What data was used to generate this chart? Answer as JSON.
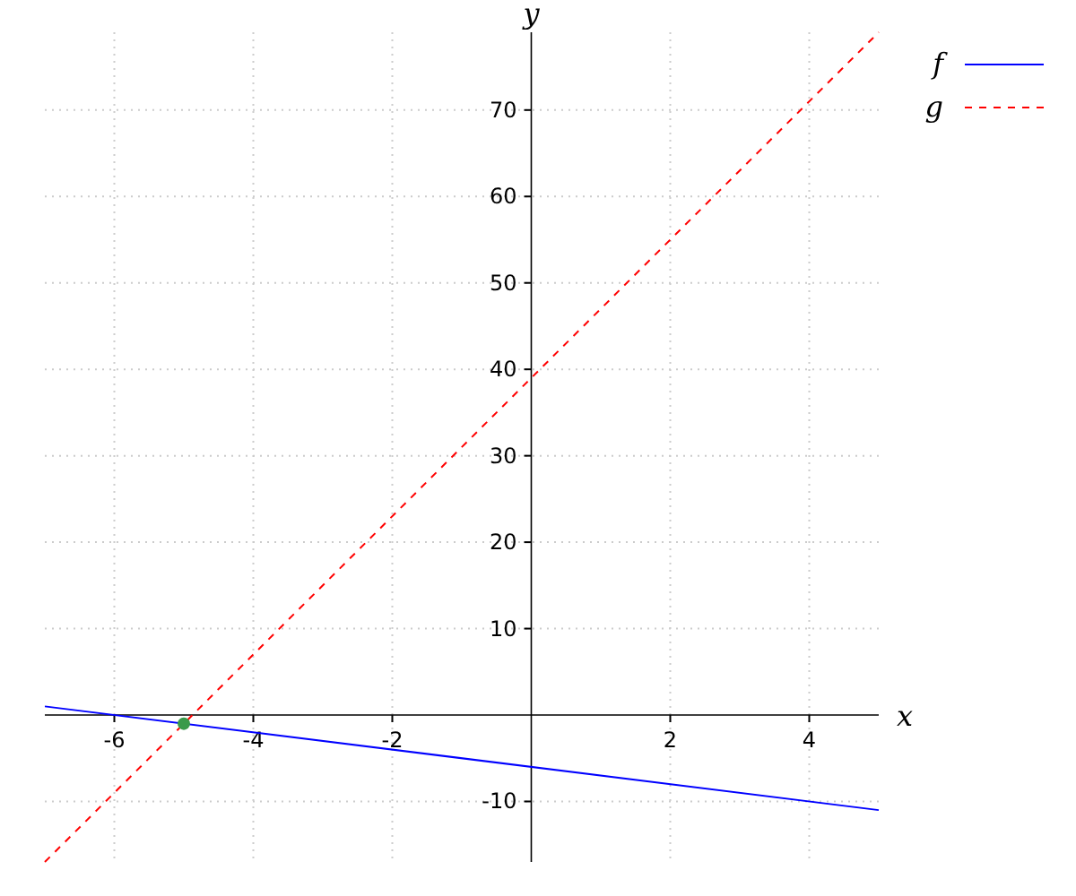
{
  "chart_data": {
    "type": "line",
    "xlabel": "x",
    "ylabel": "y",
    "xlim": [
      -7,
      5
    ],
    "ylim": [
      -17,
      79
    ],
    "xticks": [
      -6,
      -4,
      -2,
      2,
      4
    ],
    "yticks": [
      -10,
      10,
      20,
      30,
      40,
      50,
      60,
      70
    ],
    "grid": true,
    "legend": "top right",
    "series": [
      {
        "name": "f",
        "color": "#0000ff",
        "x": [
          -7,
          5
        ],
        "values": [
          1,
          -11
        ],
        "line_style": "solid",
        "marker": "none"
      },
      {
        "name": "g",
        "color": "#ff0000",
        "x": [
          -7,
          5
        ],
        "values": [
          -17,
          79
        ],
        "line_style": "dashed",
        "marker": "none"
      },
      {
        "type": "scatter",
        "color": "#3a9a4a",
        "x": [
          -5
        ],
        "values": [
          -1
        ],
        "marker": "circle"
      }
    ]
  }
}
